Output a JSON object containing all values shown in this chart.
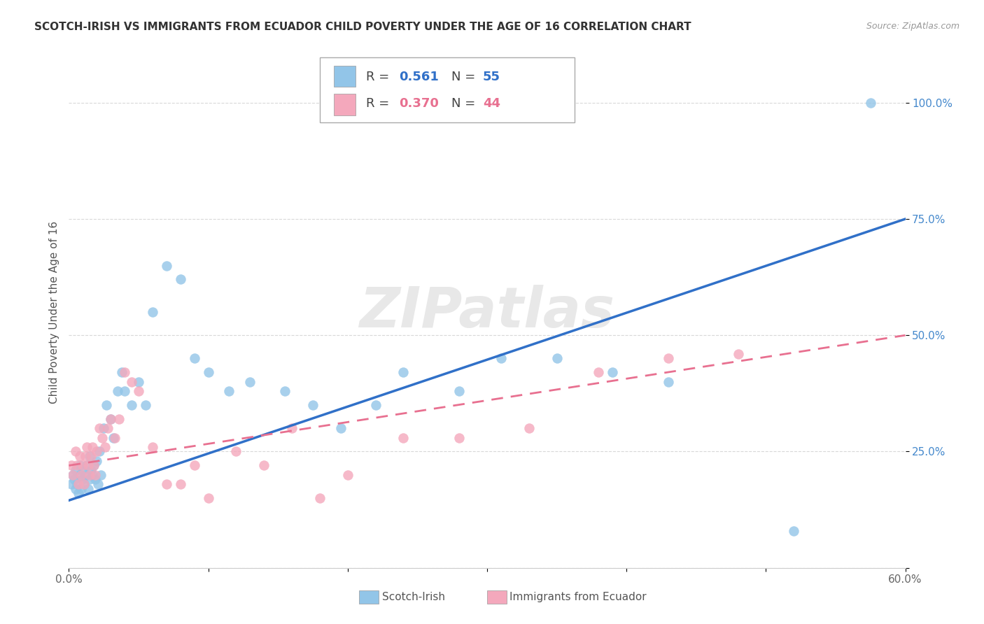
{
  "title": "SCOTCH-IRISH VS IMMIGRANTS FROM ECUADOR CHILD POVERTY UNDER THE AGE OF 16 CORRELATION CHART",
  "source": "Source: ZipAtlas.com",
  "ylabel": "Child Poverty Under the Age of 16",
  "xlim": [
    0.0,
    0.6
  ],
  "ylim": [
    0.0,
    1.1
  ],
  "xticks": [
    0.0,
    0.1,
    0.2,
    0.3,
    0.4,
    0.5,
    0.6
  ],
  "xticklabels": [
    "0.0%",
    "",
    "",
    "",
    "",
    "",
    "60.0%"
  ],
  "yticks": [
    0.0,
    0.25,
    0.5,
    0.75,
    1.0
  ],
  "yticklabels": [
    "",
    "25.0%",
    "50.0%",
    "75.0%",
    "100.0%"
  ],
  "watermark": "ZIPatlas",
  "series1_color": "#92c5e8",
  "series2_color": "#f4a8bc",
  "line1_color": "#3070c8",
  "line2_color": "#e87090",
  "background_color": "#ffffff",
  "grid_color": "#d8d8d8",
  "scotch_irish_x": [
    0.002,
    0.003,
    0.004,
    0.005,
    0.005,
    0.006,
    0.007,
    0.008,
    0.008,
    0.009,
    0.01,
    0.01,
    0.011,
    0.012,
    0.013,
    0.014,
    0.015,
    0.015,
    0.016,
    0.017,
    0.018,
    0.019,
    0.02,
    0.021,
    0.022,
    0.023,
    0.025,
    0.027,
    0.03,
    0.032,
    0.035,
    0.038,
    0.04,
    0.045,
    0.05,
    0.055,
    0.06,
    0.07,
    0.08,
    0.09,
    0.1,
    0.115,
    0.13,
    0.155,
    0.175,
    0.195,
    0.22,
    0.24,
    0.28,
    0.31,
    0.35,
    0.39,
    0.43,
    0.52,
    0.575
  ],
  "scotch_irish_y": [
    0.18,
    0.2,
    0.19,
    0.17,
    0.21,
    0.18,
    0.16,
    0.2,
    0.22,
    0.17,
    0.19,
    0.21,
    0.18,
    0.2,
    0.22,
    0.17,
    0.24,
    0.19,
    0.21,
    0.2,
    0.22,
    0.19,
    0.23,
    0.18,
    0.25,
    0.2,
    0.3,
    0.35,
    0.32,
    0.28,
    0.38,
    0.42,
    0.38,
    0.35,
    0.4,
    0.35,
    0.55,
    0.65,
    0.62,
    0.45,
    0.42,
    0.38,
    0.4,
    0.38,
    0.35,
    0.3,
    0.35,
    0.42,
    0.38,
    0.45,
    0.45,
    0.42,
    0.4,
    0.08,
    1.0
  ],
  "ecuador_x": [
    0.002,
    0.003,
    0.005,
    0.006,
    0.007,
    0.008,
    0.009,
    0.01,
    0.011,
    0.012,
    0.013,
    0.014,
    0.015,
    0.016,
    0.017,
    0.018,
    0.019,
    0.02,
    0.022,
    0.024,
    0.026,
    0.028,
    0.03,
    0.033,
    0.036,
    0.04,
    0.045,
    0.05,
    0.06,
    0.07,
    0.08,
    0.09,
    0.1,
    0.12,
    0.14,
    0.16,
    0.18,
    0.2,
    0.24,
    0.28,
    0.33,
    0.38,
    0.43,
    0.48
  ],
  "ecuador_y": [
    0.22,
    0.2,
    0.25,
    0.22,
    0.18,
    0.24,
    0.2,
    0.22,
    0.18,
    0.24,
    0.26,
    0.22,
    0.2,
    0.24,
    0.26,
    0.22,
    0.2,
    0.25,
    0.3,
    0.28,
    0.26,
    0.3,
    0.32,
    0.28,
    0.32,
    0.42,
    0.4,
    0.38,
    0.26,
    0.18,
    0.18,
    0.22,
    0.15,
    0.25,
    0.22,
    0.3,
    0.15,
    0.2,
    0.28,
    0.28,
    0.3,
    0.42,
    0.45,
    0.46
  ],
  "line1_x0": 0.0,
  "line1_y0": 0.145,
  "line1_x1": 0.6,
  "line1_y1": 0.75,
  "line2_x0": 0.0,
  "line2_y0": 0.22,
  "line2_x1": 0.6,
  "line2_y1": 0.5
}
